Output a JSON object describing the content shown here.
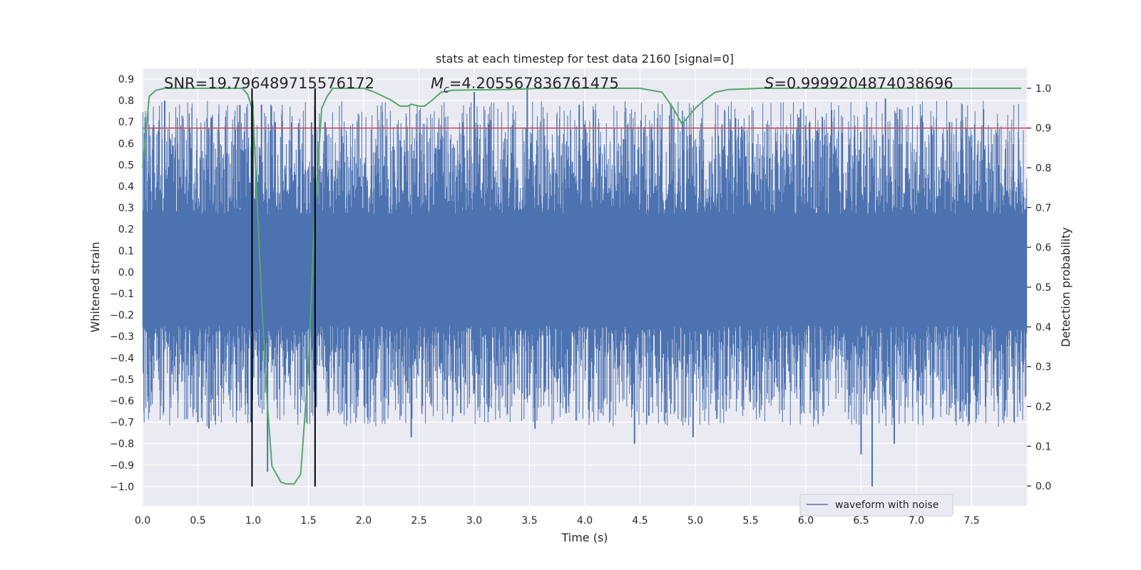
{
  "chart_data": {
    "type": "line",
    "title": "stats at each timestep for test data 2160 [signal=0]",
    "xlabel": "Time (s)",
    "ylabel_left": "Whitened strain",
    "ylabel_right": "Detection probability",
    "xlim": [
      0.0,
      8.0
    ],
    "ylim_left": [
      -1.09,
      0.95
    ],
    "ylim_right": [
      -0.05,
      1.05
    ],
    "xticks": [
      "0.0",
      "0.5",
      "1.0",
      "1.5",
      "2.0",
      "2.5",
      "3.0",
      "3.5",
      "4.0",
      "4.5",
      "5.0",
      "5.5",
      "6.0",
      "6.5",
      "7.0",
      "7.5"
    ],
    "yticks_left": [
      "0.9",
      "0.8",
      "0.7",
      "0.6",
      "0.5",
      "0.4",
      "0.3",
      "0.2",
      "0.1",
      "0.0",
      "−0.1",
      "−0.2",
      "−0.3",
      "−0.4",
      "−0.5",
      "−0.6",
      "−0.7",
      "−0.8",
      "−0.9",
      "−1.0"
    ],
    "yticks_right": [
      "1.0",
      "0.9",
      "0.8",
      "0.7",
      "0.6",
      "0.5",
      "0.4",
      "0.3",
      "0.2",
      "0.1",
      "0.0"
    ],
    "grid": true,
    "legend_position": "lower-right",
    "annotations": {
      "snr": "SNR=19.796489715576172",
      "mc_symbol": "M",
      "mc_sub": "c",
      "mc_value": "=4.205567836761475",
      "s_symbol": "S",
      "s_value": "=0.9999204874038696"
    },
    "series": [
      {
        "name": "waveform with noise",
        "axis": "left",
        "color": "#4c72b0",
        "description": "dense whitened strain noise, bulk amplitude about ±0.3 with spikes up to 0.87 and down to -1.0",
        "band": [
          -0.3,
          0.3
        ],
        "peaks": [
          [
            0.2,
            0.8
          ],
          [
            0.62,
            0.72
          ],
          [
            0.88,
            0.78
          ],
          [
            1.0,
            0.63
          ],
          [
            1.2,
            0.7
          ],
          [
            1.65,
            0.7
          ],
          [
            2.9,
            0.7
          ],
          [
            3.0,
            0.84
          ],
          [
            3.15,
            0.71
          ],
          [
            3.48,
            0.87
          ],
          [
            3.95,
            0.78
          ],
          [
            4.35,
            0.62
          ],
          [
            4.95,
            0.64
          ],
          [
            5.42,
            0.68
          ],
          [
            6.1,
            0.66
          ],
          [
            6.72,
            0.81
          ],
          [
            6.85,
            0.76
          ],
          [
            7.05,
            0.73
          ],
          [
            7.3,
            0.7
          ],
          [
            7.45,
            0.67
          ]
        ],
        "troughs": [
          [
            0.05,
            -0.58
          ],
          [
            0.5,
            -0.7
          ],
          [
            0.6,
            -0.73
          ],
          [
            0.98,
            -0.7
          ],
          [
            1.13,
            -0.93
          ],
          [
            1.57,
            -0.63
          ],
          [
            2.43,
            -0.77
          ],
          [
            3.55,
            -0.73
          ],
          [
            4.45,
            -0.8
          ],
          [
            4.58,
            -0.67
          ],
          [
            4.98,
            -0.77
          ],
          [
            6.5,
            -0.85
          ],
          [
            6.6,
            -1.0
          ],
          [
            6.8,
            -0.8
          ],
          [
            7.4,
            -0.65
          ]
        ]
      },
      {
        "name": "",
        "axis": "right",
        "color": "#55a868",
        "x": [
          0.0,
          0.06,
          0.12,
          0.2,
          0.3,
          0.5,
          0.7,
          0.9,
          0.95,
          1.0,
          1.03,
          1.08,
          1.13,
          1.17,
          1.25,
          1.3,
          1.37,
          1.43,
          1.5,
          1.56,
          1.62,
          1.67,
          1.72,
          1.8,
          2.0,
          2.1,
          2.25,
          2.33,
          2.4,
          2.43,
          2.5,
          2.55,
          2.62,
          2.7,
          2.8,
          3.0,
          3.3,
          3.6,
          4.0,
          4.5,
          4.7,
          4.75,
          4.8,
          4.88,
          4.94,
          5.0,
          5.08,
          5.18,
          5.3,
          5.6,
          6.0,
          7.0,
          7.95
        ],
        "values": [
          0.8,
          0.98,
          0.995,
          1.0,
          1.0,
          1.0,
          1.0,
          1.0,
          0.985,
          0.94,
          0.75,
          0.45,
          0.2,
          0.05,
          0.01,
          0.005,
          0.005,
          0.03,
          0.3,
          0.7,
          0.95,
          0.98,
          1.0,
          1.0,
          1.0,
          0.99,
          0.97,
          0.955,
          0.955,
          0.96,
          0.955,
          0.955,
          0.97,
          0.99,
          0.995,
          0.996,
          0.997,
          1.0,
          1.0,
          1.0,
          0.99,
          0.97,
          0.95,
          0.91,
          0.93,
          0.95,
          0.97,
          0.99,
          0.997,
          1.0,
          1.0,
          1.0,
          1.0
        ]
      }
    ],
    "threshold": {
      "axis": "right",
      "value": 0.9,
      "color": "#c44e52"
    },
    "vlines": {
      "x": [
        0.99,
        1.56
      ],
      "ymin_left": -1.0,
      "ymax_right": 1.0,
      "color": "#000000"
    }
  }
}
